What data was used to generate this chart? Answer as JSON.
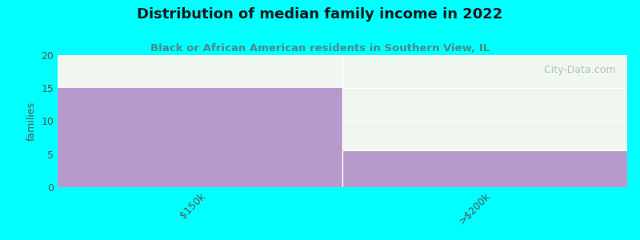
{
  "title": "Distribution of median family income in 2022",
  "subtitle": "Black or African American residents in Southern View, IL",
  "title_color": "#1a1a1a",
  "subtitle_color": "#4a8a8a",
  "background_color": "#00ffff",
  "plot_bg_color": "#f0f7f0",
  "bar_color": "#b899cc",
  "categories": [
    "$150k",
    ">$200k"
  ],
  "values": [
    15,
    5.5
  ],
  "ylim": [
    0,
    20
  ],
  "yticks": [
    0,
    5,
    10,
    15,
    20
  ],
  "ylabel": "families",
  "watermark": "  City-Data.com"
}
